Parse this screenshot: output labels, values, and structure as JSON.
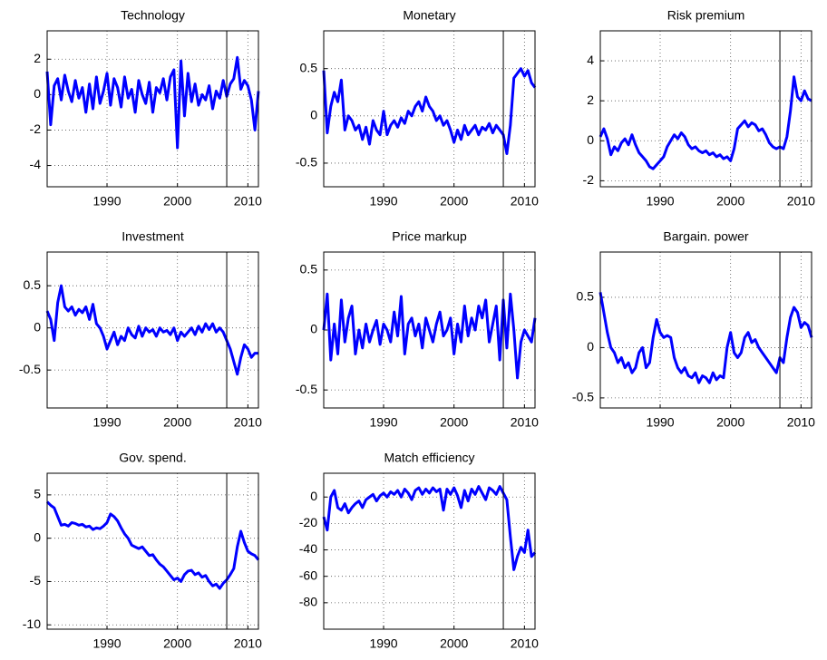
{
  "chart_data": [
    {
      "type": "line",
      "title": "Technology",
      "color": "#0000ff",
      "grid": true,
      "vline": 2007,
      "x": [
        1981.5,
        1982,
        1982.5,
        1983,
        1983.5,
        1984,
        1984.5,
        1985,
        1985.5,
        1986,
        1986.5,
        1987,
        1987.5,
        1988,
        1988.5,
        1989,
        1989.5,
        1990,
        1990.5,
        1991,
        1991.5,
        1992,
        1992.5,
        1993,
        1993.5,
        1994,
        1994.5,
        1995,
        1995.5,
        1996,
        1996.5,
        1997,
        1997.5,
        1998,
        1998.5,
        1999,
        1999.5,
        2000,
        2000.5,
        2001,
        2001.5,
        2002,
        2002.5,
        2003,
        2003.5,
        2004,
        2004.5,
        2005,
        2005.5,
        2006,
        2006.5,
        2007,
        2007.5,
        2008,
        2008.5,
        2009,
        2009.5,
        2010,
        2010.5,
        2011,
        2011.5
      ],
      "values": [
        1.3,
        -1.7,
        0.5,
        0.9,
        -0.3,
        1.1,
        0.2,
        -0.4,
        0.8,
        -0.2,
        0.4,
        -1.0,
        0.6,
        -0.8,
        1.0,
        -0.5,
        0.2,
        1.2,
        -0.6,
        0.9,
        0.4,
        -0.7,
        1.0,
        -0.2,
        0.3,
        -1.0,
        0.8,
        0.0,
        -0.5,
        0.7,
        -1.0,
        0.4,
        0.1,
        0.9,
        -0.3,
        1.0,
        1.4,
        -3.0,
        1.9,
        -1.2,
        1.2,
        -0.4,
        0.6,
        -0.6,
        0.0,
        -0.3,
        0.5,
        -0.8,
        0.2,
        -0.2,
        0.8,
        -0.1,
        0.6,
        0.9,
        2.1,
        0.3,
        0.8,
        0.5,
        -0.3,
        -2.0,
        0.2
      ],
      "xlim": [
        1981.5,
        2011.5
      ],
      "xticks": [
        1990,
        2000,
        2010
      ],
      "ylim": [
        -5.2,
        3.6
      ],
      "yticks": [
        -4,
        -2,
        0,
        2
      ]
    },
    {
      "type": "line",
      "title": "Monetary",
      "color": "#0000ff",
      "grid": true,
      "vline": 2007,
      "x": [
        1981.5,
        1982,
        1982.5,
        1983,
        1983.5,
        1984,
        1984.5,
        1985,
        1985.5,
        1986,
        1986.5,
        1987,
        1987.5,
        1988,
        1988.5,
        1989,
        1989.5,
        1990,
        1990.5,
        1991,
        1991.5,
        1992,
        1992.5,
        1993,
        1993.5,
        1994,
        1994.5,
        1995,
        1995.5,
        1996,
        1996.5,
        1997,
        1997.5,
        1998,
        1998.5,
        1999,
        1999.5,
        2000,
        2000.5,
        2001,
        2001.5,
        2002,
        2002.5,
        2003,
        2003.5,
        2004,
        2004.5,
        2005,
        2005.5,
        2006,
        2006.5,
        2007,
        2007.5,
        2008,
        2008.5,
        2009,
        2009.5,
        2010,
        2010.5,
        2011,
        2011.5
      ],
      "values": [
        0.48,
        -0.18,
        0.1,
        0.25,
        0.15,
        0.38,
        -0.15,
        0.0,
        -0.05,
        -0.15,
        -0.1,
        -0.25,
        -0.12,
        -0.3,
        -0.05,
        -0.15,
        -0.2,
        0.05,
        -0.2,
        -0.1,
        -0.05,
        -0.12,
        -0.02,
        -0.08,
        0.05,
        0.0,
        0.1,
        0.15,
        0.05,
        0.2,
        0.1,
        0.05,
        -0.05,
        0.0,
        -0.1,
        -0.05,
        -0.15,
        -0.28,
        -0.15,
        -0.25,
        -0.1,
        -0.2,
        -0.15,
        -0.1,
        -0.2,
        -0.12,
        -0.15,
        -0.08,
        -0.18,
        -0.1,
        -0.15,
        -0.2,
        -0.4,
        -0.1,
        0.4,
        0.45,
        0.5,
        0.42,
        0.48,
        0.35,
        0.3
      ],
      "xlim": [
        1981.5,
        2011.5
      ],
      "xticks": [
        1990,
        2000,
        2010
      ],
      "ylim": [
        -0.75,
        0.9
      ],
      "yticks": [
        -0.5,
        0,
        0.5
      ]
    },
    {
      "type": "line",
      "title": "Risk premium",
      "color": "#0000ff",
      "grid": true,
      "vline": 2007,
      "x": [
        1981.5,
        1982,
        1982.5,
        1983,
        1983.5,
        1984,
        1984.5,
        1985,
        1985.5,
        1986,
        1986.5,
        1987,
        1987.5,
        1988,
        1988.5,
        1989,
        1989.5,
        1990,
        1990.5,
        1991,
        1991.5,
        1992,
        1992.5,
        1993,
        1993.5,
        1994,
        1994.5,
        1995,
        1995.5,
        1996,
        1996.5,
        1997,
        1997.5,
        1998,
        1998.5,
        1999,
        1999.5,
        2000,
        2000.5,
        2001,
        2001.5,
        2002,
        2002.5,
        2003,
        2003.5,
        2004,
        2004.5,
        2005,
        2005.5,
        2006,
        2006.5,
        2007,
        2007.5,
        2008,
        2008.5,
        2009,
        2009.5,
        2010,
        2010.5,
        2011,
        2011.5
      ],
      "values": [
        0.2,
        0.6,
        0.1,
        -0.7,
        -0.3,
        -0.5,
        -0.1,
        0.1,
        -0.2,
        0.3,
        -0.2,
        -0.6,
        -0.8,
        -1.0,
        -1.3,
        -1.4,
        -1.2,
        -1.0,
        -0.8,
        -0.3,
        0.0,
        0.3,
        0.1,
        0.4,
        0.2,
        -0.2,
        -0.4,
        -0.3,
        -0.5,
        -0.6,
        -0.5,
        -0.7,
        -0.6,
        -0.8,
        -0.7,
        -0.9,
        -0.8,
        -1.0,
        -0.4,
        0.6,
        0.8,
        1.0,
        0.7,
        0.9,
        0.8,
        0.5,
        0.6,
        0.3,
        -0.1,
        -0.3,
        -0.4,
        -0.3,
        -0.4,
        0.2,
        1.5,
        3.2,
        2.2,
        2.0,
        2.5,
        2.1,
        2.0
      ],
      "xlim": [
        1981.5,
        2011.5
      ],
      "xticks": [
        1990,
        2000,
        2010
      ],
      "ylim": [
        -2.3,
        5.5
      ],
      "yticks": [
        -2,
        0,
        2,
        4
      ]
    },
    {
      "type": "line",
      "title": "Investment",
      "color": "#0000ff",
      "grid": true,
      "vline": 2007,
      "x": [
        1981.5,
        1982,
        1982.5,
        1983,
        1983.5,
        1984,
        1984.5,
        1985,
        1985.5,
        1986,
        1986.5,
        1987,
        1987.5,
        1988,
        1988.5,
        1989,
        1989.5,
        1990,
        1990.5,
        1991,
        1991.5,
        1992,
        1992.5,
        1993,
        1993.5,
        1994,
        1994.5,
        1995,
        1995.5,
        1996,
        1996.5,
        1997,
        1997.5,
        1998,
        1998.5,
        1999,
        1999.5,
        2000,
        2000.5,
        2001,
        2001.5,
        2002,
        2002.5,
        2003,
        2003.5,
        2004,
        2004.5,
        2005,
        2005.5,
        2006,
        2006.5,
        2007,
        2007.5,
        2008,
        2008.5,
        2009,
        2009.5,
        2010,
        2010.5,
        2011,
        2011.5
      ],
      "values": [
        0.2,
        0.1,
        -0.15,
        0.3,
        0.5,
        0.25,
        0.2,
        0.25,
        0.15,
        0.22,
        0.18,
        0.25,
        0.1,
        0.28,
        0.05,
        0.0,
        -0.1,
        -0.25,
        -0.15,
        -0.05,
        -0.2,
        -0.1,
        -0.15,
        0.0,
        -0.08,
        -0.12,
        0.02,
        -0.1,
        0.0,
        -0.05,
        -0.02,
        -0.1,
        0.0,
        -0.05,
        -0.03,
        -0.08,
        0.0,
        -0.15,
        -0.05,
        -0.1,
        -0.05,
        0.0,
        -0.08,
        0.02,
        -0.05,
        0.05,
        -0.02,
        0.05,
        -0.05,
        0.0,
        -0.05,
        -0.15,
        -0.25,
        -0.4,
        -0.55,
        -0.35,
        -0.2,
        -0.25,
        -0.35,
        -0.3,
        -0.3
      ],
      "xlim": [
        1981.5,
        2011.5
      ],
      "xticks": [
        1990,
        2000,
        2010
      ],
      "ylim": [
        -0.95,
        0.9
      ],
      "yticks": [
        -0.5,
        0,
        0.5
      ]
    },
    {
      "type": "line",
      "title": "Price markup",
      "color": "#0000ff",
      "grid": true,
      "vline": 2007,
      "x": [
        1981.5,
        1982,
        1982.5,
        1983,
        1983.5,
        1984,
        1984.5,
        1985,
        1985.5,
        1986,
        1986.5,
        1987,
        1987.5,
        1988,
        1988.5,
        1989,
        1989.5,
        1990,
        1990.5,
        1991,
        1991.5,
        1992,
        1992.5,
        1993,
        1993.5,
        1994,
        1994.5,
        1995,
        1995.5,
        1996,
        1996.5,
        1997,
        1997.5,
        1998,
        1998.5,
        1999,
        1999.5,
        2000,
        2000.5,
        2001,
        2001.5,
        2002,
        2002.5,
        2003,
        2003.5,
        2004,
        2004.5,
        2005,
        2005.5,
        2006,
        2006.5,
        2007,
        2007.5,
        2008,
        2008.5,
        2009,
        2009.5,
        2010,
        2010.5,
        2011,
        2011.5
      ],
      "values": [
        0.0,
        0.3,
        -0.25,
        0.05,
        -0.2,
        0.25,
        -0.1,
        0.1,
        0.2,
        -0.2,
        0.0,
        -0.15,
        0.05,
        -0.1,
        0.0,
        0.08,
        -0.12,
        0.05,
        0.0,
        -0.1,
        0.15,
        -0.05,
        0.28,
        -0.2,
        0.05,
        0.1,
        -0.05,
        0.05,
        -0.15,
        0.1,
        0.0,
        -0.1,
        0.05,
        0.15,
        -0.05,
        0.0,
        0.1,
        -0.2,
        0.05,
        -0.1,
        0.2,
        -0.05,
        0.1,
        0.0,
        0.2,
        0.1,
        0.25,
        -0.1,
        0.05,
        0.2,
        -0.25,
        0.25,
        -0.15,
        0.3,
        0.0,
        -0.4,
        -0.1,
        0.0,
        -0.05,
        -0.1,
        0.1
      ],
      "xlim": [
        1981.5,
        2011.5
      ],
      "xticks": [
        1990,
        2000,
        2010
      ],
      "ylim": [
        -0.65,
        0.65
      ],
      "yticks": [
        -0.5,
        0,
        0.5
      ]
    },
    {
      "type": "line",
      "title": "Bargain. power",
      "color": "#0000ff",
      "grid": true,
      "vline": 2007,
      "x": [
        1981.5,
        1982,
        1982.5,
        1983,
        1983.5,
        1984,
        1984.5,
        1985,
        1985.5,
        1986,
        1986.5,
        1987,
        1987.5,
        1988,
        1988.5,
        1989,
        1989.5,
        1990,
        1990.5,
        1991,
        1991.5,
        1992,
        1992.5,
        1993,
        1993.5,
        1994,
        1994.5,
        1995,
        1995.5,
        1996,
        1996.5,
        1997,
        1997.5,
        1998,
        1998.5,
        1999,
        1999.5,
        2000,
        2000.5,
        2001,
        2001.5,
        2002,
        2002.5,
        2003,
        2003.5,
        2004,
        2004.5,
        2005,
        2005.5,
        2006,
        2006.5,
        2007,
        2007.5,
        2008,
        2008.5,
        2009,
        2009.5,
        2010,
        2010.5,
        2011,
        2011.5
      ],
      "values": [
        0.55,
        0.35,
        0.15,
        0.0,
        -0.05,
        -0.15,
        -0.1,
        -0.2,
        -0.15,
        -0.25,
        -0.2,
        -0.05,
        0.0,
        -0.2,
        -0.15,
        0.1,
        0.28,
        0.15,
        0.1,
        0.12,
        0.1,
        -0.1,
        -0.2,
        -0.25,
        -0.2,
        -0.28,
        -0.3,
        -0.25,
        -0.35,
        -0.28,
        -0.3,
        -0.35,
        -0.25,
        -0.32,
        -0.28,
        -0.3,
        0.0,
        0.15,
        -0.05,
        -0.1,
        -0.05,
        0.1,
        0.15,
        0.05,
        0.08,
        0.0,
        -0.05,
        -0.1,
        -0.15,
        -0.2,
        -0.25,
        -0.1,
        -0.15,
        0.1,
        0.3,
        0.4,
        0.35,
        0.2,
        0.25,
        0.22,
        0.1
      ],
      "xlim": [
        1981.5,
        2011.5
      ],
      "xticks": [
        1990,
        2000,
        2010
      ],
      "ylim": [
        -0.6,
        0.95
      ],
      "yticks": [
        -0.5,
        0,
        0.5
      ]
    },
    {
      "type": "line",
      "title": "Gov. spend.",
      "color": "#0000ff",
      "grid": true,
      "vline": 2007,
      "x": [
        1981.5,
        1982,
        1982.5,
        1983,
        1983.5,
        1984,
        1984.5,
        1985,
        1985.5,
        1986,
        1986.5,
        1987,
        1987.5,
        1988,
        1988.5,
        1989,
        1989.5,
        1990,
        1990.5,
        1991,
        1991.5,
        1992,
        1992.5,
        1993,
        1993.5,
        1994,
        1994.5,
        1995,
        1995.5,
        1996,
        1996.5,
        1997,
        1997.5,
        1998,
        1998.5,
        1999,
        1999.5,
        2000,
        2000.5,
        2001,
        2001.5,
        2002,
        2002.5,
        2003,
        2003.5,
        2004,
        2004.5,
        2005,
        2005.5,
        2006,
        2006.5,
        2007,
        2007.5,
        2008,
        2008.5,
        2009,
        2009.5,
        2010,
        2010.5,
        2011,
        2011.5
      ],
      "values": [
        4.2,
        3.8,
        3.5,
        2.5,
        1.5,
        1.6,
        1.4,
        1.8,
        1.7,
        1.5,
        1.6,
        1.3,
        1.4,
        1.0,
        1.2,
        1.1,
        1.4,
        1.8,
        2.8,
        2.5,
        2.0,
        1.2,
        0.5,
        0.0,
        -0.8,
        -1.0,
        -1.2,
        -1.0,
        -1.5,
        -2.0,
        -1.9,
        -2.5,
        -3.0,
        -3.3,
        -3.8,
        -4.3,
        -4.8,
        -4.6,
        -5.0,
        -4.2,
        -3.8,
        -3.7,
        -4.2,
        -4.0,
        -4.5,
        -4.3,
        -5.0,
        -5.5,
        -5.3,
        -5.8,
        -5.2,
        -4.8,
        -4.2,
        -3.5,
        -1.0,
        0.8,
        -0.5,
        -1.5,
        -1.8,
        -2.0,
        -2.5
      ],
      "xlim": [
        1981.5,
        2011.5
      ],
      "xticks": [
        1990,
        2000,
        2010
      ],
      "ylim": [
        -10.5,
        7.5
      ],
      "yticks": [
        -10,
        -5,
        0,
        5
      ]
    },
    {
      "type": "line",
      "title": "Match efficiency",
      "color": "#0000ff",
      "grid": true,
      "vline": 2007,
      "x": [
        1981.5,
        1982,
        1982.5,
        1983,
        1983.5,
        1984,
        1984.5,
        1985,
        1985.5,
        1986,
        1986.5,
        1987,
        1987.5,
        1988,
        1988.5,
        1989,
        1989.5,
        1990,
        1990.5,
        1991,
        1991.5,
        1992,
        1992.5,
        1993,
        1993.5,
        1994,
        1994.5,
        1995,
        1995.5,
        1996,
        1996.5,
        1997,
        1997.5,
        1998,
        1998.5,
        1999,
        1999.5,
        2000,
        2000.5,
        2001,
        2001.5,
        2002,
        2002.5,
        2003,
        2003.5,
        2004,
        2004.5,
        2005,
        2005.5,
        2006,
        2006.5,
        2007,
        2007.5,
        2008,
        2008.5,
        2009,
        2009.5,
        2010,
        2010.5,
        2011,
        2011.5
      ],
      "values": [
        -15,
        -25,
        0,
        5,
        -8,
        -10,
        -5,
        -12,
        -8,
        -5,
        -3,
        -8,
        -2,
        0,
        2,
        -3,
        1,
        3,
        0,
        4,
        2,
        5,
        0,
        6,
        3,
        -2,
        5,
        7,
        2,
        6,
        3,
        7,
        4,
        6,
        -10,
        6,
        2,
        7,
        1,
        -8,
        5,
        -3,
        6,
        2,
        8,
        3,
        -2,
        7,
        5,
        2,
        8,
        3,
        -2,
        -30,
        -55,
        -45,
        -38,
        -42,
        -25,
        -45,
        -42
      ],
      "xlim": [
        1981.5,
        2011.5
      ],
      "xticks": [
        1990,
        2000,
        2010
      ],
      "ylim": [
        -100,
        18
      ],
      "yticks": [
        -80,
        -60,
        -40,
        -20,
        0
      ]
    }
  ]
}
